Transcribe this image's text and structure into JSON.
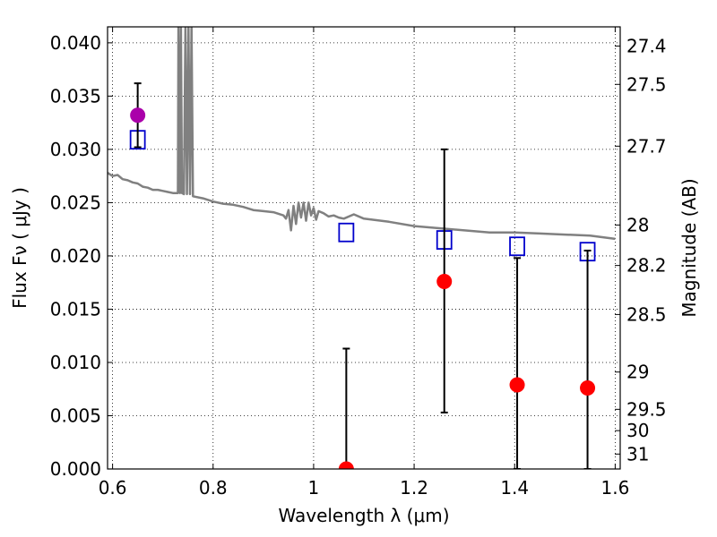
{
  "chart_data": {
    "type": "scatter",
    "xlabel": "Wavelength  λ (μm)",
    "ylabel": "Flux  Fν  ( μJy )",
    "y2label": "Magnitude (AB)",
    "xlim": [
      0.59,
      1.61
    ],
    "ylim": [
      0.0,
      0.0415
    ],
    "grid": true,
    "x_ticks": [
      0.6,
      0.8,
      1.0,
      1.2,
      1.4,
      1.6
    ],
    "x_tick_labels": [
      "0.6",
      "0.8",
      "1",
      "1.2",
      "1.4",
      "1.6"
    ],
    "y_ticks": [
      0.0,
      0.005,
      0.01,
      0.015,
      0.02,
      0.025,
      0.03,
      0.035,
      0.04
    ],
    "y_tick_labels": [
      "0.000",
      "0.005",
      "0.010",
      "0.015",
      "0.020",
      "0.025",
      "0.030",
      "0.035",
      "0.040"
    ],
    "mag_ticks": [
      {
        "label": "27.4",
        "flux": 0.0397
      },
      {
        "label": "27.5",
        "flux": 0.0361
      },
      {
        "label": "27.7",
        "flux": 0.0303
      },
      {
        "label": "28",
        "flux": 0.0229
      },
      {
        "label": "28.2",
        "flux": 0.0191
      },
      {
        "label": "28.5",
        "flux": 0.0145
      },
      {
        "label": "29",
        "flux": 0.0091
      },
      {
        "label": "29.5",
        "flux": 0.0056
      },
      {
        "label": "30",
        "flux": 0.0036
      },
      {
        "label": "31",
        "flux": 0.0014
      }
    ],
    "series": [
      {
        "kind": "line",
        "color": "#808080",
        "x": [
          0.59,
          0.6,
          0.61,
          0.62,
          0.63,
          0.64,
          0.65,
          0.66,
          0.67,
          0.68,
          0.69,
          0.7,
          0.71,
          0.72,
          0.73,
          0.731,
          0.734,
          0.736,
          0.738,
          0.742,
          0.745,
          0.748,
          0.751,
          0.754,
          0.757,
          0.76,
          0.78,
          0.8,
          0.82,
          0.84,
          0.86,
          0.88,
          0.9,
          0.92,
          0.94,
          0.945,
          0.95,
          0.955,
          0.96,
          0.965,
          0.97,
          0.975,
          0.98,
          0.985,
          0.99,
          0.995,
          1.0,
          1.005,
          1.01,
          1.02,
          1.03,
          1.04,
          1.05,
          1.06,
          1.08,
          1.1,
          1.15,
          1.2,
          1.25,
          1.3,
          1.35,
          1.4,
          1.45,
          1.5,
          1.55,
          1.6
        ],
        "y": [
          0.0278,
          0.0275,
          0.0276,
          0.0272,
          0.0271,
          0.0269,
          0.0268,
          0.0265,
          0.0264,
          0.0262,
          0.0262,
          0.0261,
          0.026,
          0.0259,
          0.0259,
          0.0415,
          0.0259,
          0.0415,
          0.0259,
          0.0258,
          0.0415,
          0.0258,
          0.0415,
          0.0258,
          0.0415,
          0.0256,
          0.0254,
          0.0251,
          0.0249,
          0.0248,
          0.0246,
          0.0243,
          0.0242,
          0.0241,
          0.0238,
          0.0235,
          0.0243,
          0.0224,
          0.0247,
          0.023,
          0.025,
          0.0236,
          0.025,
          0.0233,
          0.025,
          0.0238,
          0.0245,
          0.0234,
          0.0242,
          0.024,
          0.0237,
          0.0238,
          0.0236,
          0.0235,
          0.0239,
          0.0235,
          0.0232,
          0.0228,
          0.0226,
          0.0224,
          0.0222,
          0.0222,
          0.0221,
          0.022,
          0.0219,
          0.0216
        ]
      },
      {
        "kind": "squares",
        "color": "#0000cc",
        "x": [
          0.65,
          1.065,
          1.26,
          1.405,
          1.545
        ],
        "y": [
          0.0309,
          0.0222,
          0.0215,
          0.0209,
          0.0204
        ]
      },
      {
        "kind": "points",
        "color": "#ff0000",
        "x": [
          1.065,
          1.26,
          1.405,
          1.545
        ],
        "y": [
          0.0,
          0.0176,
          0.0079,
          0.0076
        ],
        "err_low": [
          0.0,
          0.0123,
          0.0079,
          0.0076
        ],
        "err_high": [
          0.0113,
          0.0124,
          0.0119,
          0.0129
        ]
      },
      {
        "kind": "points",
        "color": "#aa00aa",
        "x": [
          0.65
        ],
        "y": [
          0.0332
        ],
        "err_low": [
          0.003
        ],
        "err_high": [
          0.003
        ]
      }
    ]
  }
}
